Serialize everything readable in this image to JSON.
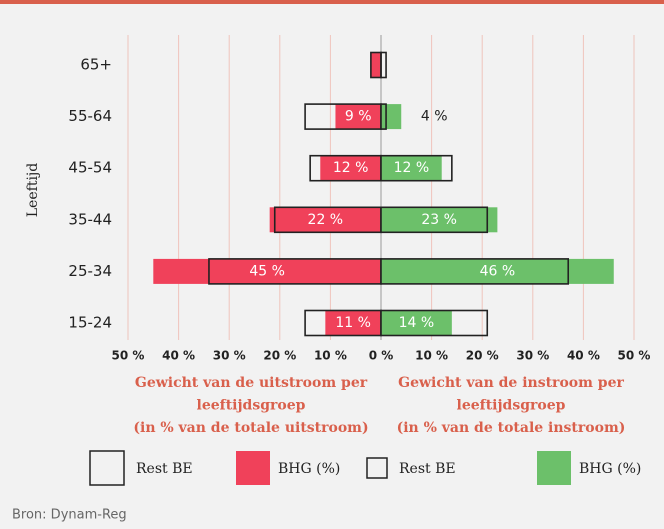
{
  "chart_data": {
    "type": "butterfly",
    "ylabel": "Leeftijd",
    "categories": [
      "65+",
      "55-64",
      "45-54",
      "35-44",
      "25-34",
      "15-24"
    ],
    "grid": true,
    "panels": [
      {
        "side": "left",
        "xlabel": [
          "Gewicht van de uitstroom per",
          "leeftijdsgroep",
          "(in % van de totale uitstroom)"
        ],
        "xlim": [
          0,
          50
        ],
        "xticks": [
          {
            "value": 50,
            "label": "50 %"
          },
          {
            "value": 40,
            "label": "40 %"
          },
          {
            "value": 30,
            "label": "30 %"
          },
          {
            "value": 20,
            "label": "20 %"
          },
          {
            "value": 10,
            "label": "10 %"
          },
          {
            "value": 0,
            "label": "0 %"
          }
        ],
        "series": [
          {
            "name": "Rest BE",
            "color": "#222222",
            "style": "outline",
            "values": [
              2,
              15,
              14,
              21,
              34,
              15
            ]
          },
          {
            "name": "BHG (%)",
            "color": "#f0415a",
            "style": "fill",
            "values": [
              2,
              9,
              12,
              22,
              45,
              11
            ],
            "value_labels": [
              null,
              "9 %",
              "12 %",
              "22 %",
              "45 %",
              "11 %"
            ]
          }
        ]
      },
      {
        "side": "right",
        "xlabel": [
          "Gewicht van de instroom per",
          "leeftijdsgroep",
          "(in % van de totale instroom)"
        ],
        "xlim": [
          0,
          50
        ],
        "xticks": [
          {
            "value": 10,
            "label": "10 %"
          },
          {
            "value": 20,
            "label": "20 %"
          },
          {
            "value": 30,
            "label": "30 %"
          },
          {
            "value": 40,
            "label": "40 %"
          },
          {
            "value": 50,
            "label": "50 %"
          }
        ],
        "series": [
          {
            "name": "Rest BE",
            "color": "#222222",
            "style": "outline",
            "values": [
              1,
              1,
              14,
              21,
              37,
              21
            ]
          },
          {
            "name": "BHG (%)",
            "color": "#6cc06a",
            "style": "fill",
            "values": [
              0,
              4,
              12,
              23,
              46,
              14
            ],
            "value_labels": [
              null,
              "4 %",
              "12 %",
              "23 %",
              "46 %",
              "14 %"
            ]
          }
        ]
      }
    ],
    "source": "Bron: Dynam-Reg"
  }
}
